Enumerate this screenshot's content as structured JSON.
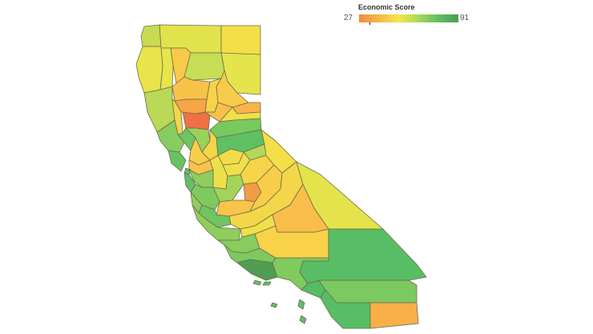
{
  "legend": {
    "title": "Economic Score",
    "min_label": "27",
    "max_label": "91",
    "min": 27,
    "max": 91,
    "colors": [
      "#f08a45",
      "#f9b74a",
      "#f5e54b",
      "#a8d85a",
      "#5fbe63",
      "#4a9d52"
    ]
  },
  "regions": [
    {
      "name": "del-norte",
      "score": 66,
      "color": "#c8db52"
    },
    {
      "name": "siskiyou",
      "score": 64,
      "color": "#e2e34c"
    },
    {
      "name": "modoc",
      "score": 60,
      "color": "#f3df47"
    },
    {
      "name": "humboldt",
      "score": 62,
      "color": "#e9e44b"
    },
    {
      "name": "trinity",
      "score": 63,
      "color": "#e6e54c"
    },
    {
      "name": "shasta",
      "score": 50,
      "color": "#f8c94a"
    },
    {
      "name": "lassen",
      "score": 63,
      "color": "#e6e44c"
    },
    {
      "name": "mendocino",
      "score": 68,
      "color": "#b9d957"
    },
    {
      "name": "tehama",
      "score": 71,
      "color": "#c7dd55"
    },
    {
      "name": "plumas",
      "score": 52,
      "color": "#f8cc4a"
    },
    {
      "name": "glenn",
      "score": 50,
      "color": "#f9c34a"
    },
    {
      "name": "butte",
      "score": 55,
      "color": "#f7d34a"
    },
    {
      "name": "sierra",
      "score": 47,
      "color": "#f8b34a"
    },
    {
      "name": "colusa",
      "score": 40,
      "color": "#f6a646"
    },
    {
      "name": "sutter",
      "score": 27,
      "color": "#f07045"
    },
    {
      "name": "yuba",
      "score": 48,
      "color": "#f8c14a"
    },
    {
      "name": "nevada",
      "score": 60,
      "color": "#f2df48"
    },
    {
      "name": "placer",
      "score": 80,
      "color": "#77c960"
    },
    {
      "name": "lake",
      "score": 57,
      "color": "#f4d449"
    },
    {
      "name": "sonoma",
      "score": 78,
      "color": "#87cc5e"
    },
    {
      "name": "napa",
      "score": 82,
      "color": "#6fc561"
    },
    {
      "name": "yolo",
      "score": 76,
      "color": "#9ad25b"
    },
    {
      "name": "sacramento",
      "score": 56,
      "color": "#f4d449"
    },
    {
      "name": "el-dorado",
      "score": 84,
      "color": "#60c064"
    },
    {
      "name": "alpine",
      "score": 72,
      "color": "#b5d85a"
    },
    {
      "name": "amador",
      "score": 60,
      "color": "#f2dd48"
    },
    {
      "name": "calaveras",
      "score": 61,
      "color": "#efe04a"
    },
    {
      "name": "tuolumne",
      "score": 56,
      "color": "#f6d449"
    },
    {
      "name": "mono",
      "score": 60,
      "color": "#f3df47"
    },
    {
      "name": "marin",
      "score": 83,
      "color": "#67c362"
    },
    {
      "name": "solano",
      "score": 55,
      "color": "#f8cd4a"
    },
    {
      "name": "contra-costa",
      "score": 50,
      "color": "#f9c34a"
    },
    {
      "name": "san-joaquin",
      "score": 60,
      "color": "#ede049"
    },
    {
      "name": "stanislaus",
      "score": 74,
      "color": "#a3d45a"
    },
    {
      "name": "mariposa",
      "score": 39,
      "color": "#f49c45"
    },
    {
      "name": "san-francisco",
      "score": 86,
      "color": "#5dbe64"
    },
    {
      "name": "san-mateo",
      "score": 85,
      "color": "#62c063"
    },
    {
      "name": "alameda",
      "score": 78,
      "color": "#8ccd5e"
    },
    {
      "name": "santa-clara",
      "score": 80,
      "color": "#7dca5f"
    },
    {
      "name": "santa-cruz",
      "score": 77,
      "color": "#8fce5c"
    },
    {
      "name": "merced",
      "score": 50,
      "color": "#f9c44a"
    },
    {
      "name": "madera",
      "score": 55,
      "color": "#f8cd4a"
    },
    {
      "name": "fresno",
      "score": 58,
      "color": "#f3d64a"
    },
    {
      "name": "inyo",
      "score": 63,
      "color": "#e5e34b"
    },
    {
      "name": "san-benito",
      "score": 82,
      "color": "#6ec561"
    },
    {
      "name": "monterey",
      "score": 77,
      "color": "#8fce5c"
    },
    {
      "name": "kings",
      "score": 61,
      "color": "#ede049"
    },
    {
      "name": "tulare",
      "score": 47,
      "color": "#f9be4a"
    },
    {
      "name": "san-luis-obispo",
      "score": 78,
      "color": "#88cc5e"
    },
    {
      "name": "kern",
      "score": 51,
      "color": "#f9d24a"
    },
    {
      "name": "santa-barbara",
      "score": 80,
      "color": "#7cc95f"
    },
    {
      "name": "ventura",
      "score": 91,
      "color": "#509d52"
    },
    {
      "name": "los-angeles",
      "score": 78,
      "color": "#80ca5e"
    },
    {
      "name": "san-bernardino",
      "score": 84,
      "color": "#58be65"
    },
    {
      "name": "orange",
      "score": 86,
      "color": "#56bb63"
    },
    {
      "name": "riverside",
      "score": 80,
      "color": "#7cc95f"
    },
    {
      "name": "san-diego",
      "score": 86,
      "color": "#58be65"
    },
    {
      "name": "imperial",
      "score": 43,
      "color": "#f8af48"
    },
    {
      "name": "channel-islands",
      "score": 85,
      "color": "#5fbe63"
    }
  ]
}
